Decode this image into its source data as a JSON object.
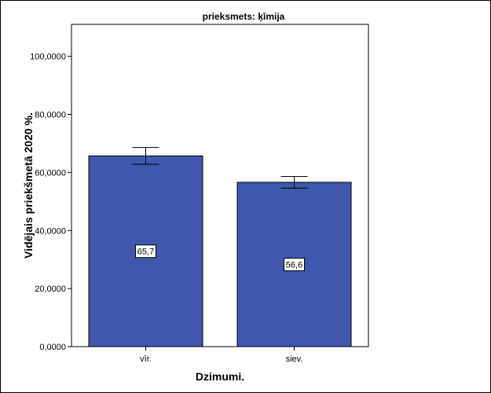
{
  "chart_data": {
    "type": "bar",
    "title": "prieksmets: ķīmija",
    "xlabel": "Dzimumi.",
    "ylabel": "Vidējais priekšmetā 2020 %.",
    "categories": [
      "vīr.",
      "siev."
    ],
    "values": [
      65.7,
      56.6
    ],
    "data_labels": [
      "65,7",
      "56,6"
    ],
    "error_bars": [
      {
        "low": 62.8,
        "high": 68.6
      },
      {
        "low": 54.6,
        "high": 58.6
      }
    ],
    "ylim": [
      0,
      111
    ],
    "yticks": [
      0,
      20,
      40,
      60,
      80,
      100
    ],
    "ytick_labels": [
      "0,0000",
      "20,0000",
      "40,0000",
      "60,0000",
      "80,0000",
      "100,0000"
    ],
    "bar_color": "#3f58ae",
    "grid": false,
    "legend": "none"
  }
}
